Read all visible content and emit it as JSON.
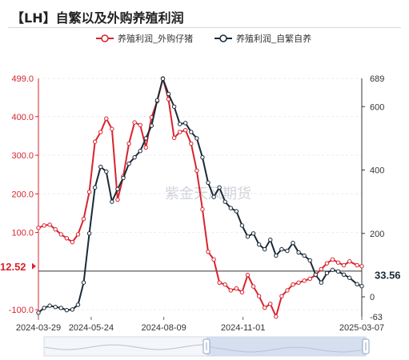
{
  "title": "【LH】自繁以及外购养殖利润",
  "watermark": "紫金天风期货",
  "colors": {
    "series1": "#d9232e",
    "series2": "#1b2a38",
    "grid": "#eeeeee",
    "left_axis": "#d9232e",
    "right_axis": "#333333"
  },
  "chart_data": {
    "type": "line",
    "title": "【LH】自繁以及外购养殖利润",
    "x_start": "2024-03-29",
    "x_end": "2025-03-07",
    "x_ticks": [
      "2024-03-29",
      "2024-05-24",
      "2024-08-09",
      "2024-11-01",
      "2025-03-07"
    ],
    "legend_position": "top-center",
    "grid": true,
    "left_axis": {
      "min": -118.5,
      "max": 499.0,
      "ticks": [
        -100,
        0,
        100,
        200,
        300,
        400
      ],
      "tick_labels": [
        "-100.0",
        "",
        "100.0",
        "200.0",
        "300.0",
        "400.0"
      ],
      "top_label": "499.0"
    },
    "right_axis": {
      "min": -63,
      "max": 689,
      "ticks": [
        0,
        200,
        400,
        600
      ],
      "tick_labels": [
        "0",
        "200",
        "400",
        "600"
      ],
      "top_label": "689",
      "bottom_label": "-63"
    },
    "series": [
      {
        "name": "养殖利润_外购仔猪",
        "axis": "left",
        "end_label": "12.52",
        "points": [
          [
            "2024-03-29",
            112
          ],
          [
            "2024-04-04",
            118
          ],
          [
            "2024-04-10",
            120
          ],
          [
            "2024-04-16",
            108
          ],
          [
            "2024-04-22",
            95
          ],
          [
            "2024-04-28",
            85
          ],
          [
            "2024-05-04",
            75
          ],
          [
            "2024-05-10",
            95
          ],
          [
            "2024-05-16",
            135
          ],
          [
            "2024-05-22",
            205
          ],
          [
            "2024-05-28",
            335
          ],
          [
            "2024-06-03",
            360
          ],
          [
            "2024-06-09",
            395
          ],
          [
            "2024-06-15",
            368
          ],
          [
            "2024-06-21",
            185
          ],
          [
            "2024-06-27",
            245
          ],
          [
            "2024-07-03",
            330
          ],
          [
            "2024-07-09",
            385
          ],
          [
            "2024-07-15",
            378
          ],
          [
            "2024-07-21",
            320
          ],
          [
            "2024-07-27",
            398
          ],
          [
            "2024-08-02",
            440
          ],
          [
            "2024-08-08",
            499
          ],
          [
            "2024-08-14",
            445
          ],
          [
            "2024-08-20",
            345
          ],
          [
            "2024-08-26",
            360
          ],
          [
            "2024-09-01",
            365
          ],
          [
            "2024-09-07",
            330
          ],
          [
            "2024-09-13",
            260
          ],
          [
            "2024-09-19",
            160
          ],
          [
            "2024-09-25",
            50
          ],
          [
            "2024-10-01",
            30
          ],
          [
            "2024-10-07",
            -30
          ],
          [
            "2024-10-13",
            -35
          ],
          [
            "2024-10-19",
            -50
          ],
          [
            "2024-10-25",
            -45
          ],
          [
            "2024-10-31",
            -55
          ],
          [
            "2024-11-06",
            -10
          ],
          [
            "2024-11-12",
            -40
          ],
          [
            "2024-11-18",
            -65
          ],
          [
            "2024-11-24",
            -95
          ],
          [
            "2024-11-30",
            -85
          ],
          [
            "2024-12-06",
            -118
          ],
          [
            "2024-12-12",
            -65
          ],
          [
            "2024-12-18",
            -50
          ],
          [
            "2024-12-24",
            -35
          ],
          [
            "2024-12-30",
            -30
          ],
          [
            "2025-01-05",
            -25
          ],
          [
            "2025-01-11",
            -20
          ],
          [
            "2025-01-17",
            -10
          ],
          [
            "2025-01-23",
            5
          ],
          [
            "2025-01-29",
            20
          ],
          [
            "2025-02-04",
            30
          ],
          [
            "2025-02-10",
            22
          ],
          [
            "2025-02-16",
            15
          ],
          [
            "2025-02-22",
            25
          ],
          [
            "2025-03-02",
            15
          ],
          [
            "2025-03-07",
            12.52
          ]
        ]
      },
      {
        "name": "养殖利润_自繁自养",
        "axis": "right",
        "end_label": "33.56",
        "points": [
          [
            "2024-03-29",
            -50
          ],
          [
            "2024-04-04",
            -35
          ],
          [
            "2024-04-10",
            -28
          ],
          [
            "2024-04-16",
            -32
          ],
          [
            "2024-04-22",
            -35
          ],
          [
            "2024-04-28",
            -42
          ],
          [
            "2024-05-04",
            -40
          ],
          [
            "2024-05-10",
            -25
          ],
          [
            "2024-05-16",
            45
          ],
          [
            "2024-05-22",
            200
          ],
          [
            "2024-05-28",
            345
          ],
          [
            "2024-06-03",
            410
          ],
          [
            "2024-06-09",
            395
          ],
          [
            "2024-06-15",
            300
          ],
          [
            "2024-06-21",
            340
          ],
          [
            "2024-06-27",
            375
          ],
          [
            "2024-07-03",
            420
          ],
          [
            "2024-07-09",
            440
          ],
          [
            "2024-07-15",
            460
          ],
          [
            "2024-07-21",
            500
          ],
          [
            "2024-07-27",
            540
          ],
          [
            "2024-08-02",
            620
          ],
          [
            "2024-08-08",
            688
          ],
          [
            "2024-08-14",
            640
          ],
          [
            "2024-08-20",
            600
          ],
          [
            "2024-08-26",
            545
          ],
          [
            "2024-09-01",
            548
          ],
          [
            "2024-09-07",
            520
          ],
          [
            "2024-09-13",
            500
          ],
          [
            "2024-09-19",
            440
          ],
          [
            "2024-09-25",
            360
          ],
          [
            "2024-10-01",
            315
          ],
          [
            "2024-10-07",
            345
          ],
          [
            "2024-10-13",
            300
          ],
          [
            "2024-10-19",
            280
          ],
          [
            "2024-10-25",
            270
          ],
          [
            "2024-10-31",
            225
          ],
          [
            "2024-11-06",
            190
          ],
          [
            "2024-11-12",
            200
          ],
          [
            "2024-11-18",
            165
          ],
          [
            "2024-11-24",
            150
          ],
          [
            "2024-11-30",
            180
          ],
          [
            "2024-12-06",
            130
          ],
          [
            "2024-12-12",
            150
          ],
          [
            "2024-12-18",
            145
          ],
          [
            "2024-12-24",
            170
          ],
          [
            "2024-12-30",
            140
          ],
          [
            "2025-01-05",
            130
          ],
          [
            "2025-01-11",
            115
          ],
          [
            "2025-01-17",
            70
          ],
          [
            "2025-01-23",
            45
          ],
          [
            "2025-01-29",
            75
          ],
          [
            "2025-02-04",
            85
          ],
          [
            "2025-02-10",
            80
          ],
          [
            "2025-02-16",
            70
          ],
          [
            "2025-02-22",
            60
          ],
          [
            "2025-03-02",
            40
          ],
          [
            "2025-03-07",
            33.56
          ]
        ]
      }
    ]
  }
}
